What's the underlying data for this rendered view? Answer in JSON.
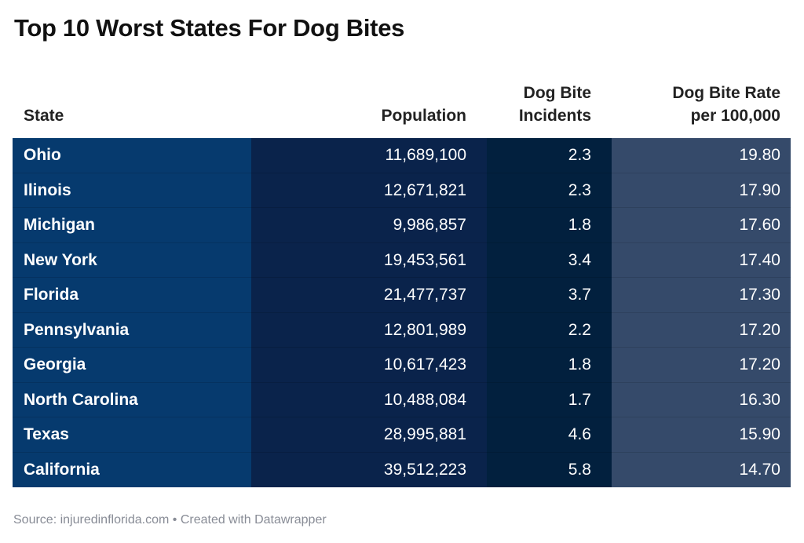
{
  "title": "Top 10 Worst States For Dog Bites",
  "table": {
    "headers": {
      "state": "State",
      "population": "Population",
      "incidents_line1": "Dog Bite",
      "incidents_line2": "Incidents",
      "rate_line1": "Dog Bite Rate",
      "rate_line2": "per 100,000"
    },
    "rows": [
      {
        "state": "Ohio",
        "population": "11,689,100",
        "incidents": "2.3",
        "rate": "19.80"
      },
      {
        "state": "Ilinois",
        "population": "12,671,821",
        "incidents": "2.3",
        "rate": "17.90"
      },
      {
        "state": "Michigan",
        "population": "9,986,857",
        "incidents": "1.8",
        "rate": "17.60"
      },
      {
        "state": "New York",
        "population": "19,453,561",
        "incidents": "3.4",
        "rate": "17.40"
      },
      {
        "state": "Florida",
        "population": "21,477,737",
        "incidents": "3.7",
        "rate": "17.30"
      },
      {
        "state": "Pennsylvania",
        "population": "12,801,989",
        "incidents": "2.2",
        "rate": "17.20"
      },
      {
        "state": "Georgia",
        "population": "10,617,423",
        "incidents": "1.8",
        "rate": "17.20"
      },
      {
        "state": "North Carolina",
        "population": "10,488,084",
        "incidents": "1.7",
        "rate": "16.30"
      },
      {
        "state": "Texas",
        "population": "28,995,881",
        "incidents": "4.6",
        "rate": "15.90"
      },
      {
        "state": "California",
        "population": "39,512,223",
        "incidents": "5.8",
        "rate": "14.70"
      }
    ],
    "column_colors": {
      "state": "#063a6e",
      "population": "#0a234b",
      "incidents": "#02203e",
      "rate": "#354a6a"
    }
  },
  "footer": "Source: injuredinflorida.com • Created with Datawrapper"
}
